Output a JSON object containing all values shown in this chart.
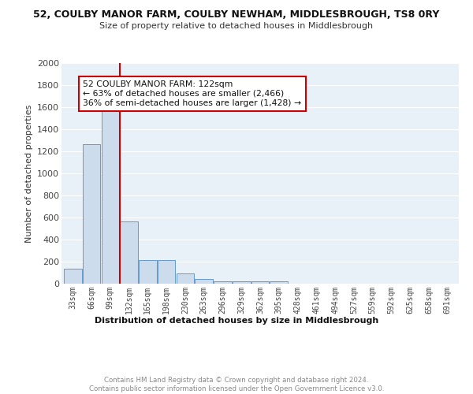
{
  "title": "52, COULBY MANOR FARM, COULBY NEWHAM, MIDDLESBROUGH, TS8 0RY",
  "subtitle": "Size of property relative to detached houses in Middlesbrough",
  "xlabel": "Distribution of detached houses by size in Middlesbrough",
  "ylabel": "Number of detached properties",
  "bar_color": "#ccdcec",
  "bar_edge_color": "#6699cc",
  "bg_color": "#e8f0f8",
  "grid_color": "#ffffff",
  "categories": [
    "33sqm",
    "66sqm",
    "99sqm",
    "132sqm",
    "165sqm",
    "198sqm",
    "230sqm",
    "263sqm",
    "296sqm",
    "329sqm",
    "362sqm",
    "395sqm",
    "428sqm",
    "461sqm",
    "494sqm",
    "527sqm",
    "559sqm",
    "592sqm",
    "625sqm",
    "658sqm",
    "691sqm"
  ],
  "values": [
    135,
    1265,
    1570,
    565,
    215,
    215,
    95,
    45,
    22,
    18,
    18,
    18,
    0,
    0,
    0,
    0,
    0,
    0,
    0,
    0,
    0
  ],
  "annotation_text": "52 COULBY MANOR FARM: 122sqm\n← 63% of detached houses are smaller (2,466)\n36% of semi-detached houses are larger (1,428) →",
  "ylim": [
    0,
    2000
  ],
  "yticks": [
    0,
    200,
    400,
    600,
    800,
    1000,
    1200,
    1400,
    1600,
    1800,
    2000
  ],
  "footer": "Contains HM Land Registry data © Crown copyright and database right 2024.\nContains public sector information licensed under the Open Government Licence v3.0.",
  "red_line_x": 2.5
}
